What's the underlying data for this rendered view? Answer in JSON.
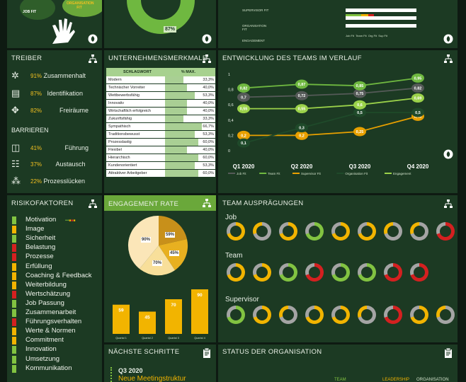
{
  "colors": {
    "panel": "#1c3a23",
    "accent": "#82c341",
    "gold": "#f2b400",
    "gray": "#a4a4a4",
    "red": "#d42020"
  },
  "top_left": {
    "labels": [
      "JOB FIT",
      "ORGANISATION FIT"
    ],
    "icon": "hand-icon"
  },
  "top_mid": {
    "donut_value": "87%",
    "fraction": 0.87
  },
  "top_right": {
    "labels": [
      "SUPERVISOR FIT",
      "ORGANISATION FIT",
      "ENGAGEMENT"
    ],
    "legend": [
      "Job Fit",
      "Team Fit",
      "Org Fit",
      "Sup Fit"
    ]
  },
  "treiber": {
    "title": "TREIBER",
    "items": [
      {
        "pct": "91%",
        "label": "Zusammenhalt",
        "icon": "network-icon"
      },
      {
        "pct": "87%",
        "label": "Identifikation",
        "icon": "id-card-icon"
      },
      {
        "pct": "82%",
        "label": "Freiräume",
        "icon": "expand-icon"
      }
    ],
    "barrieren_title": "BARRIEREN",
    "barrieren": [
      {
        "pct": "41%",
        "label": "Führung",
        "icon": "presentation-icon"
      },
      {
        "pct": "37%",
        "label": "Austausch",
        "icon": "people-icon"
      },
      {
        "pct": "22%",
        "label": "Prozesslücken",
        "icon": "process-icon"
      }
    ]
  },
  "merkmale": {
    "title": "UNTERNEHMENSMERKMALE",
    "col_schlagwort": "SCHLAGWORT",
    "col_max": "% MAX.",
    "rows": [
      {
        "name": "Modern",
        "value": "33,3%",
        "frac": 0.333
      },
      {
        "name": "Technischer Vorreiter",
        "value": "40,0%",
        "frac": 0.4
      },
      {
        "name": "Wettbewerbsfähig",
        "value": "53,3%",
        "frac": 0.533
      },
      {
        "name": "Innovativ",
        "value": "40,0%",
        "frac": 0.4
      },
      {
        "name": "Wirtschaftlich erfolgreich",
        "value": "40,0%",
        "frac": 0.4
      },
      {
        "name": "Zukunftsfähig",
        "value": "33,3%",
        "frac": 0.333
      },
      {
        "name": "Sympathisch",
        "value": "66,7%",
        "frac": 0.667
      },
      {
        "name": "Traditionsbewusst",
        "value": "53,3%",
        "frac": 0.533
      },
      {
        "name": "Prozesslastig",
        "value": "60,0%",
        "frac": 0.6
      },
      {
        "name": "Flexibel",
        "value": "40,0%",
        "frac": 0.4
      },
      {
        "name": "Hierarchisch",
        "value": "60,0%",
        "frac": 0.6
      },
      {
        "name": "Kundenorientiert",
        "value": "53,3%",
        "frac": 0.533
      },
      {
        "name": "Attraktiver Arbeitgeber",
        "value": "60,0%",
        "frac": 0.6
      }
    ]
  },
  "chart_data": {
    "type": "line",
    "title": "ENTWICKLUNG DES TEAMS IM VERLAUF",
    "categories": [
      "Q1 2020",
      "Q2 2020",
      "Q3 2020",
      "Q4 2020"
    ],
    "ylim": [
      0,
      1
    ],
    "yticks": [
      "0",
      "0,2",
      "0,4",
      "0,6",
      "0,8",
      "1"
    ],
    "series": [
      {
        "name": "Job Fit",
        "color": "#555a58",
        "values": [
          0.7,
          0.72,
          0.75,
          0.82
        ],
        "labels": [
          "0,7",
          "0,72",
          "0,75",
          "0,82"
        ]
      },
      {
        "name": "Team Fit",
        "color": "#6fb840",
        "values": [
          0.82,
          0.87,
          0.85,
          0.95
        ],
        "labels": [
          "0,82",
          "0,87",
          "0,85",
          "0,95"
        ]
      },
      {
        "name": "Supervisor Fit",
        "color": "#e8a000",
        "values": [
          0.2,
          0.2,
          0.25,
          0.45
        ],
        "labels": [
          "0,2",
          "0,2",
          "0,25",
          "0,45"
        ]
      },
      {
        "name": "Organisation Fit",
        "color": "#1f4a2a",
        "values": [
          0.1,
          0.3,
          0.5,
          0.5
        ],
        "labels": [
          "0,1",
          "0,3",
          "0,5",
          "0,5"
        ]
      },
      {
        "name": "Engagement",
        "color": "#9bd24a",
        "values": [
          0.55,
          0.55,
          0.6,
          0.69
        ],
        "labels": [
          "0,55",
          "0,55",
          "0,6",
          "0,69"
        ]
      }
    ]
  },
  "risiko": {
    "title": "RISIKOFAKTOREN",
    "items": [
      {
        "label": "Motivation",
        "color": "#82c341"
      },
      {
        "label": "Image",
        "color": "#f2b400"
      },
      {
        "label": "Sicherheit",
        "color": "#82c341"
      },
      {
        "label": "Belastung",
        "color": "#d42020"
      },
      {
        "label": "Prozesse",
        "color": "#d42020"
      },
      {
        "label": "Erfüllung",
        "color": "#f2b400"
      },
      {
        "label": "Coaching & Feedback",
        "color": "#f2b400"
      },
      {
        "label": "Weiterbildung",
        "color": "#f2b400"
      },
      {
        "label": "Wertschätzung",
        "color": "#d42020"
      },
      {
        "label": "Job Passung",
        "color": "#82c341"
      },
      {
        "label": "Zusammenarbeit",
        "color": "#82c341"
      },
      {
        "label": "Führungsverhalten",
        "color": "#d42020"
      },
      {
        "label": "Werte & Normen",
        "color": "#f2b400"
      },
      {
        "label": "Commitment",
        "color": "#f2b400"
      },
      {
        "label": "Innovation",
        "color": "#82c341"
      },
      {
        "label": "Umsetzung",
        "color": "#82c341"
      },
      {
        "label": "Kommunikation",
        "color": "#82c341"
      }
    ]
  },
  "engagement": {
    "title": "ENGAGEMENT RATE",
    "pie": [
      {
        "label": "59%"
      },
      {
        "label": "45%"
      },
      {
        "label": "70%"
      },
      {
        "label": "90%"
      }
    ],
    "bars": [
      {
        "value": 59,
        "label": "59",
        "cat": "Quartal 1"
      },
      {
        "value": 45,
        "label": "45",
        "cat": "Quartal 2"
      },
      {
        "value": 70,
        "label": "70",
        "cat": "Quartal 3"
      },
      {
        "value": 90,
        "label": "90",
        "cat": "Quartal 4"
      }
    ]
  },
  "team": {
    "title": "TEAM AUSPRÄGUNGEN",
    "groups": [
      "Job",
      "Team",
      "Supervisor"
    ]
  },
  "next": {
    "title": "NÄCHSTE SCHRITTE",
    "quarter": "Q3 2020",
    "item": "Neue Meetingstruktur"
  },
  "status": {
    "title": "STATUS DER ORGANISATION",
    "tabs": [
      "TEAM",
      "LEADERSHIP",
      "ORGANISATION"
    ]
  }
}
